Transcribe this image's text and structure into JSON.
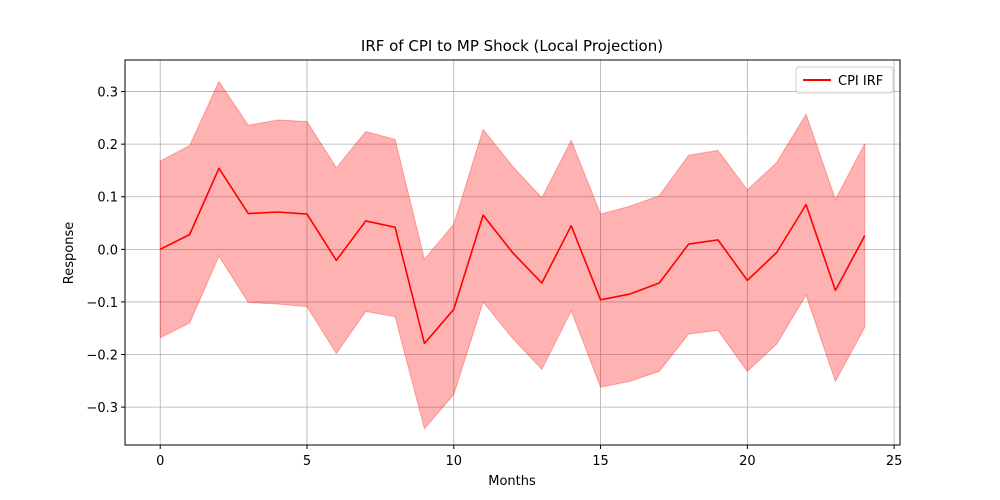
{
  "chart_data": {
    "type": "line",
    "title": "IRF of CPI to MP Shock (Local Projection)",
    "xlabel": "Months",
    "ylabel": "Response",
    "xlim": [
      -1.2,
      25.2
    ],
    "ylim": [
      -0.372,
      0.36
    ],
    "xticks": [
      0,
      5,
      10,
      15,
      20,
      25
    ],
    "yticks": [
      -0.3,
      -0.2,
      -0.1,
      0.0,
      0.1,
      0.2,
      0.3
    ],
    "ytick_labels": [
      "−0.3",
      "−0.2",
      "−0.1",
      "0.0",
      "0.1",
      "0.2",
      "0.3"
    ],
    "grid": true,
    "legend_position": "upper right",
    "series": [
      {
        "name": "CPI IRF",
        "color": "#ff0000",
        "x": [
          0,
          1,
          2,
          3,
          4,
          5,
          6,
          7,
          8,
          9,
          10,
          11,
          12,
          13,
          14,
          15,
          16,
          17,
          18,
          19,
          20,
          21,
          22,
          23,
          24
        ],
        "values": [
          0.0,
          0.028,
          0.154,
          0.068,
          0.071,
          0.067,
          -0.021,
          0.054,
          0.042,
          -0.179,
          -0.114,
          0.065,
          -0.006,
          -0.064,
          0.045,
          -0.096,
          -0.085,
          -0.064,
          0.01,
          0.018,
          -0.059,
          -0.006,
          0.085,
          -0.078,
          0.026
        ]
      }
    ],
    "confidence_band": {
      "color": "#ff0000",
      "opacity": 0.3,
      "x": [
        0,
        1,
        2,
        3,
        4,
        5,
        6,
        7,
        8,
        9,
        10,
        11,
        12,
        13,
        14,
        15,
        16,
        17,
        18,
        19,
        20,
        21,
        22,
        23,
        24
      ],
      "upper": [
        0.168,
        0.197,
        0.319,
        0.236,
        0.246,
        0.243,
        0.155,
        0.224,
        0.209,
        -0.019,
        0.048,
        0.228,
        0.158,
        0.098,
        0.207,
        0.067,
        0.082,
        0.102,
        0.179,
        0.188,
        0.113,
        0.165,
        0.257,
        0.095,
        0.201
      ],
      "lower": [
        -0.168,
        -0.14,
        -0.013,
        -0.101,
        -0.104,
        -0.109,
        -0.198,
        -0.118,
        -0.128,
        -0.341,
        -0.276,
        -0.1,
        -0.169,
        -0.228,
        -0.117,
        -0.262,
        -0.251,
        -0.232,
        -0.161,
        -0.154,
        -0.232,
        -0.18,
        -0.087,
        -0.251,
        -0.148
      ]
    }
  }
}
